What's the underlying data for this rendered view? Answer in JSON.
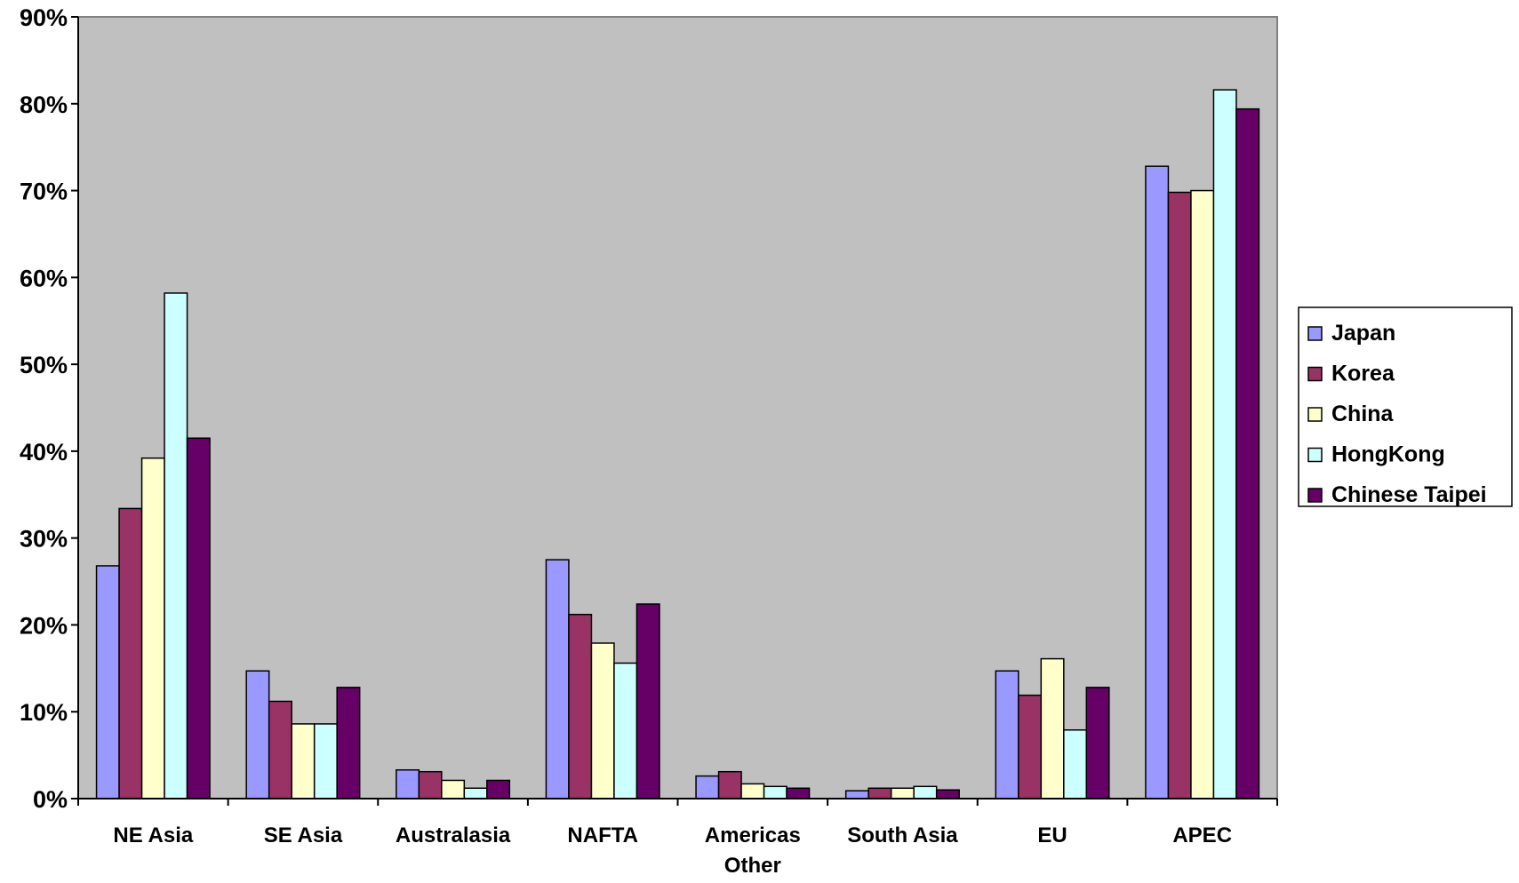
{
  "chart_data": {
    "type": "bar",
    "title": "",
    "xlabel": "",
    "ylabel": "",
    "ylim": [
      0,
      90
    ],
    "yticks": [
      0,
      10,
      20,
      30,
      40,
      50,
      60,
      70,
      80,
      90
    ],
    "ytick_labels": [
      "0%",
      "10%",
      "20%",
      "30%",
      "40%",
      "50%",
      "60%",
      "70%",
      "80%",
      "90%"
    ],
    "grid": false,
    "legend_position": "right",
    "plot_background": "#C0C0C0",
    "categories": [
      [
        "NE Asia"
      ],
      [
        "SE Asia"
      ],
      [
        "Australasia"
      ],
      [
        "NAFTA"
      ],
      [
        "Americas",
        "Other"
      ],
      [
        "South Asia"
      ],
      [
        "EU"
      ],
      [
        "APEC"
      ]
    ],
    "series": [
      {
        "name": "Japan",
        "color": "#9999FF",
        "values": [
          26.8,
          14.7,
          3.3,
          27.5,
          2.6,
          0.9,
          14.7,
          72.8
        ]
      },
      {
        "name": "Korea",
        "color": "#993366",
        "values": [
          33.4,
          11.2,
          3.1,
          21.2,
          3.1,
          1.2,
          11.9,
          69.8
        ]
      },
      {
        "name": "China",
        "color": "#FFFFCC",
        "values": [
          39.2,
          8.6,
          2.1,
          17.9,
          1.7,
          1.2,
          16.1,
          70.0
        ]
      },
      {
        "name": "HongKong",
        "color": "#CCFFFF",
        "values": [
          58.2,
          8.6,
          1.2,
          15.6,
          1.4,
          1.4,
          7.9,
          81.6
        ]
      },
      {
        "name": "Chinese Taipei",
        "color": "#660066",
        "values": [
          41.5,
          12.8,
          2.1,
          22.4,
          1.2,
          1.0,
          12.8,
          79.4
        ]
      }
    ]
  }
}
